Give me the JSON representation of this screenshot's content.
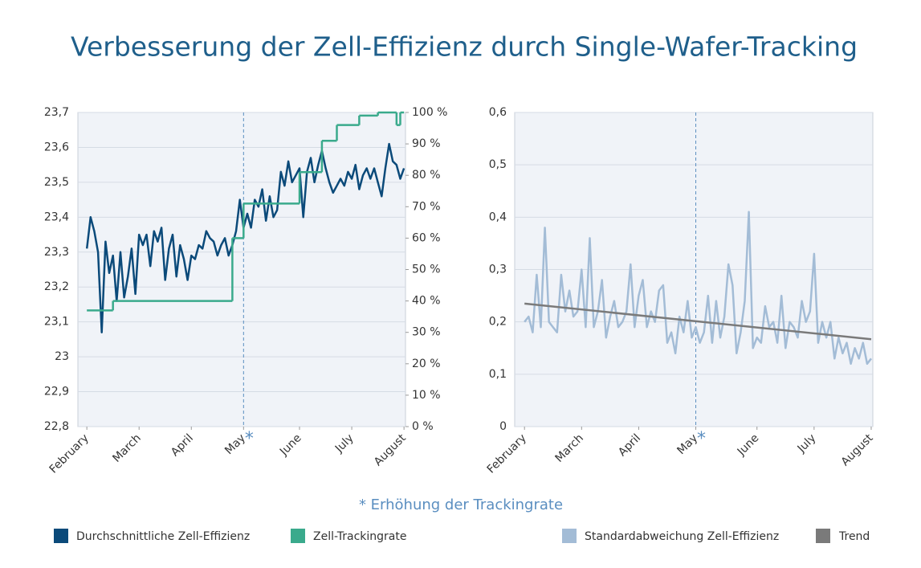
{
  "title": "Verbesserung der Zell-Effizienz durch Single-Wafer-Tracking",
  "annotation": "* Erhöhung der Trackingrate",
  "marker": "*",
  "chart_data": [
    {
      "type": "line",
      "x": [
        0,
        1,
        2,
        3,
        4,
        5,
        6,
        7,
        8,
        9,
        10,
        11,
        12,
        13,
        14,
        15,
        16,
        17,
        18,
        19,
        20,
        21,
        22,
        23,
        24,
        25,
        26,
        27,
        28,
        29,
        30,
        31,
        32,
        33,
        34,
        35,
        36,
        37,
        38,
        39,
        40,
        41,
        42,
        43,
        44,
        45,
        46,
        47,
        48,
        49,
        50,
        51,
        52,
        53,
        54,
        55,
        56,
        57,
        58,
        59,
        60,
        61,
        62,
        63,
        64,
        65,
        66,
        67,
        68,
        69,
        70,
        71,
        72,
        73,
        74,
        75,
        76,
        77,
        78,
        79,
        80,
        81,
        82,
        83,
        84,
        85
      ],
      "series": [
        {
          "name": "Durchschnittliche Zell-Effizienz",
          "color": "#0b4a7a",
          "values": [
            23.31,
            23.4,
            23.36,
            23.3,
            23.07,
            23.33,
            23.24,
            23.29,
            23.16,
            23.3,
            23.17,
            23.23,
            23.31,
            23.18,
            23.35,
            23.32,
            23.35,
            23.26,
            23.36,
            23.33,
            23.37,
            23.22,
            23.31,
            23.35,
            23.23,
            23.32,
            23.28,
            23.22,
            23.29,
            23.28,
            23.32,
            23.31,
            23.36,
            23.34,
            23.33,
            23.29,
            23.32,
            23.34,
            23.29,
            23.32,
            23.36,
            23.45,
            23.37,
            23.41,
            23.37,
            23.45,
            23.43,
            23.48,
            23.39,
            23.46,
            23.4,
            23.42,
            23.53,
            23.49,
            23.56,
            23.5,
            23.52,
            23.54,
            23.4,
            23.53,
            23.57,
            23.5,
            23.55,
            23.59,
            23.54,
            23.5,
            23.47,
            23.49,
            23.51,
            23.49,
            23.53,
            23.51,
            23.55,
            23.48,
            23.52,
            23.54,
            23.51,
            23.54,
            23.5,
            23.46,
            23.54,
            23.61,
            23.56,
            23.55,
            23.51,
            23.54
          ]
        },
        {
          "name": "Zell-Trackingrate",
          "color": "#3aaa8c",
          "axis": "y2",
          "step": true,
          "x": [
            0,
            7,
            39,
            42,
            57,
            63,
            67,
            73,
            78,
            83,
            84,
            85
          ],
          "values": [
            37,
            40,
            60,
            71,
            81,
            91,
            96,
            99,
            100,
            96,
            100,
            100
          ]
        }
      ],
      "xticks": [
        {
          "value": 0,
          "label": "February"
        },
        {
          "value": 14,
          "label": "March"
        },
        {
          "value": 28,
          "label": "April"
        },
        {
          "value": 42,
          "label": "May"
        },
        {
          "value": 57,
          "label": "June"
        },
        {
          "value": 71,
          "label": "July"
        },
        {
          "value": 85,
          "label": "August"
        }
      ],
      "xlim": [
        -2.4,
        85.4
      ],
      "vline": 42,
      "ylim": [
        22.8,
        23.7
      ],
      "yticks": [
        {
          "value": 22.8,
          "label": "22,8"
        },
        {
          "value": 22.9,
          "label": "22,9"
        },
        23,
        {
          "value": 23.1,
          "label": "23,1"
        },
        {
          "value": 23.2,
          "label": "23,2"
        },
        {
          "value": 23.3,
          "label": "23,3"
        },
        {
          "value": 23.4,
          "label": "23,4"
        },
        {
          "value": 23.5,
          "label": "23,5"
        },
        {
          "value": 23.6,
          "label": "23,6"
        },
        {
          "value": 23.7,
          "label": "23,7"
        }
      ],
      "y2lim": [
        0,
        100
      ],
      "y2ticks": [
        {
          "value": 0,
          "label": "0 %"
        },
        {
          "value": 10,
          "label": "10 %"
        },
        {
          "value": 20,
          "label": "20 %"
        },
        {
          "value": 30,
          "label": "30 %"
        },
        {
          "value": 40,
          "label": "40 %"
        },
        {
          "value": 50,
          "label": "50 %"
        },
        {
          "value": 60,
          "label": "60 %"
        },
        {
          "value": 70,
          "label": "70 %"
        },
        {
          "value": 80,
          "label": "80 %"
        },
        {
          "value": 90,
          "label": "90 %"
        },
        {
          "value": 100,
          "label": "100 %"
        }
      ],
      "grid": true
    },
    {
      "type": "line",
      "x": [
        0,
        1,
        2,
        3,
        4,
        5,
        6,
        7,
        8,
        9,
        10,
        11,
        12,
        13,
        14,
        15,
        16,
        17,
        18,
        19,
        20,
        21,
        22,
        23,
        24,
        25,
        26,
        27,
        28,
        29,
        30,
        31,
        32,
        33,
        34,
        35,
        36,
        37,
        38,
        39,
        40,
        41,
        42,
        43,
        44,
        45,
        46,
        47,
        48,
        49,
        50,
        51,
        52,
        53,
        54,
        55,
        56,
        57,
        58,
        59,
        60,
        61,
        62,
        63,
        64,
        65,
        66,
        67,
        68,
        69,
        70,
        71,
        72,
        73,
        74,
        75,
        76,
        77,
        78,
        79,
        80,
        81,
        82,
        83,
        84,
        85
      ],
      "series": [
        {
          "name": "Standardabweichung Zell-Effizienz",
          "color": "#a3bcd6",
          "values": [
            0.2,
            0.21,
            0.18,
            0.29,
            0.19,
            0.38,
            0.2,
            0.19,
            0.18,
            0.29,
            0.22,
            0.26,
            0.21,
            0.22,
            0.3,
            0.19,
            0.36,
            0.19,
            0.22,
            0.28,
            0.17,
            0.21,
            0.24,
            0.19,
            0.2,
            0.22,
            0.31,
            0.19,
            0.25,
            0.28,
            0.19,
            0.22,
            0.2,
            0.26,
            0.27,
            0.16,
            0.18,
            0.14,
            0.21,
            0.18,
            0.24,
            0.17,
            0.19,
            0.16,
            0.18,
            0.25,
            0.16,
            0.24,
            0.17,
            0.21,
            0.31,
            0.27,
            0.14,
            0.18,
            0.24,
            0.41,
            0.15,
            0.17,
            0.16,
            0.23,
            0.19,
            0.2,
            0.16,
            0.25,
            0.15,
            0.2,
            0.19,
            0.17,
            0.24,
            0.2,
            0.22,
            0.33,
            0.16,
            0.2,
            0.17,
            0.2,
            0.13,
            0.17,
            0.14,
            0.16,
            0.12,
            0.15,
            0.13,
            0.16,
            0.12,
            0.13
          ]
        },
        {
          "name": "Trend",
          "color": "#7a7a7a",
          "x": [
            0,
            85
          ],
          "values": [
            0.235,
            0.167
          ]
        }
      ],
      "xticks": [
        {
          "value": 0,
          "label": "February"
        },
        {
          "value": 14,
          "label": "March"
        },
        {
          "value": 28,
          "label": "April"
        },
        {
          "value": 42,
          "label": "May"
        },
        {
          "value": 57,
          "label": "June"
        },
        {
          "value": 71,
          "label": "July"
        },
        {
          "value": 85,
          "label": "August"
        }
      ],
      "xlim": [
        -2.4,
        85.4
      ],
      "vline": 42,
      "ylim": [
        0,
        0.6
      ],
      "yticks": [
        0,
        {
          "value": 0.1,
          "label": "0,1"
        },
        {
          "value": 0.2,
          "label": "0,2"
        },
        {
          "value": 0.3,
          "label": "0,3"
        },
        {
          "value": 0.4,
          "label": "0,4"
        },
        {
          "value": 0.5,
          "label": "0,5"
        },
        {
          "value": 0.6,
          "label": "0,6"
        }
      ],
      "grid": true
    }
  ]
}
